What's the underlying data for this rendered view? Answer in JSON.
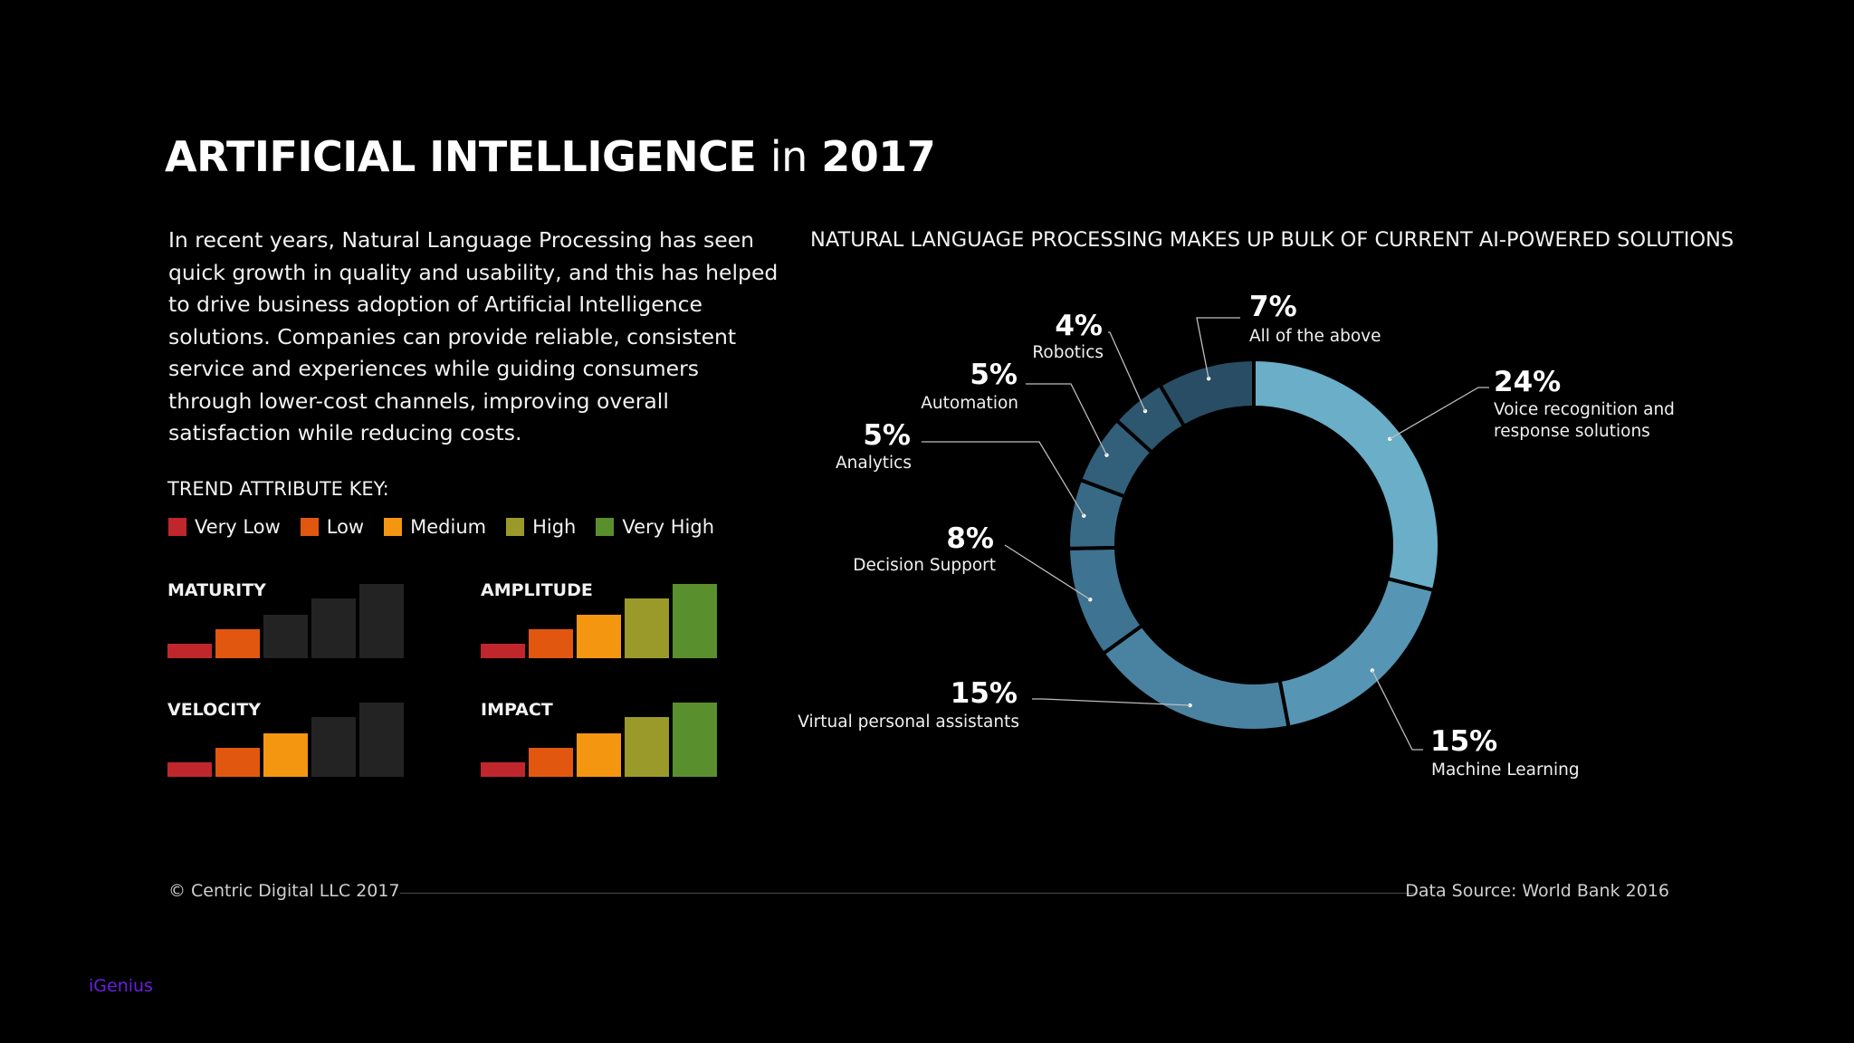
{
  "title": {
    "main": "ARTIFICIAL INTELLIGENCE",
    "connector": "in",
    "year": "2017"
  },
  "intro": "In recent years, Natural Language Processing has seen quick growth in quality and usability, and this has helped to drive business adoption of Artificial Intelligence solutions. Companies can provide reliable, consistent service and experiences while guiding consumers through lower-cost channels, improving overall satisfaction while reducing costs.",
  "trend_key": {
    "heading": "TREND ATTRIBUTE KEY:",
    "levels": [
      {
        "label": "Very Low",
        "color": "#c0272d"
      },
      {
        "label": "Low",
        "color": "#e2570f"
      },
      {
        "label": "Medium",
        "color": "#f4960f"
      },
      {
        "label": "High",
        "color": "#9a9a2a"
      },
      {
        "label": "Very High",
        "color": "#5a8f2e"
      }
    ],
    "inactive_color": "#232323"
  },
  "trends": [
    {
      "name": "MATURITY",
      "level": 2
    },
    {
      "name": "AMPLITUDE",
      "level": 5
    },
    {
      "name": "VELOCITY",
      "level": 3
    },
    {
      "name": "IMPACT",
      "level": 5
    }
  ],
  "chart_data": {
    "type": "pie",
    "title": "NATURAL LANGUAGE PROCESSING MAKES UP BULK OF CURRENT AI-POWERED SOLUTIONS",
    "slices": [
      {
        "label": "Voice recognition and response solutions",
        "label_lines": [
          "Voice recognition and",
          "response solutions"
        ],
        "value": 24,
        "display": "24%",
        "color": "#6aaec8"
      },
      {
        "label": "Machine Learning",
        "label_lines": [
          "Machine Learning"
        ],
        "value": 15,
        "display": "15%",
        "color": "#5795b4"
      },
      {
        "label": "Virtual personal assistants",
        "label_lines": [
          "Virtual personal assistants"
        ],
        "value": 15,
        "display": "15%",
        "color": "#4a83a1"
      },
      {
        "label": "Decision Support",
        "label_lines": [
          "Decision Support"
        ],
        "value": 8,
        "display": "8%",
        "color": "#3e7391"
      },
      {
        "label": "Analytics",
        "label_lines": [
          "Analytics"
        ],
        "value": 5,
        "display": "5%",
        "color": "#386985"
      },
      {
        "label": "Automation",
        "label_lines": [
          "Automation"
        ],
        "value": 5,
        "display": "5%",
        "color": "#325f7a"
      },
      {
        "label": "Robotics",
        "label_lines": [
          "Robotics"
        ],
        "value": 4,
        "display": "4%",
        "color": "#2d566f"
      },
      {
        "label": "All of the above",
        "label_lines": [
          "All of the above"
        ],
        "value": 7,
        "display": "7%",
        "color": "#284d64"
      }
    ]
  },
  "footer": {
    "copyright": "© Centric Digital LLC 2017",
    "source": "Data Source: World Bank 2016"
  },
  "watermark": "iGenius"
}
